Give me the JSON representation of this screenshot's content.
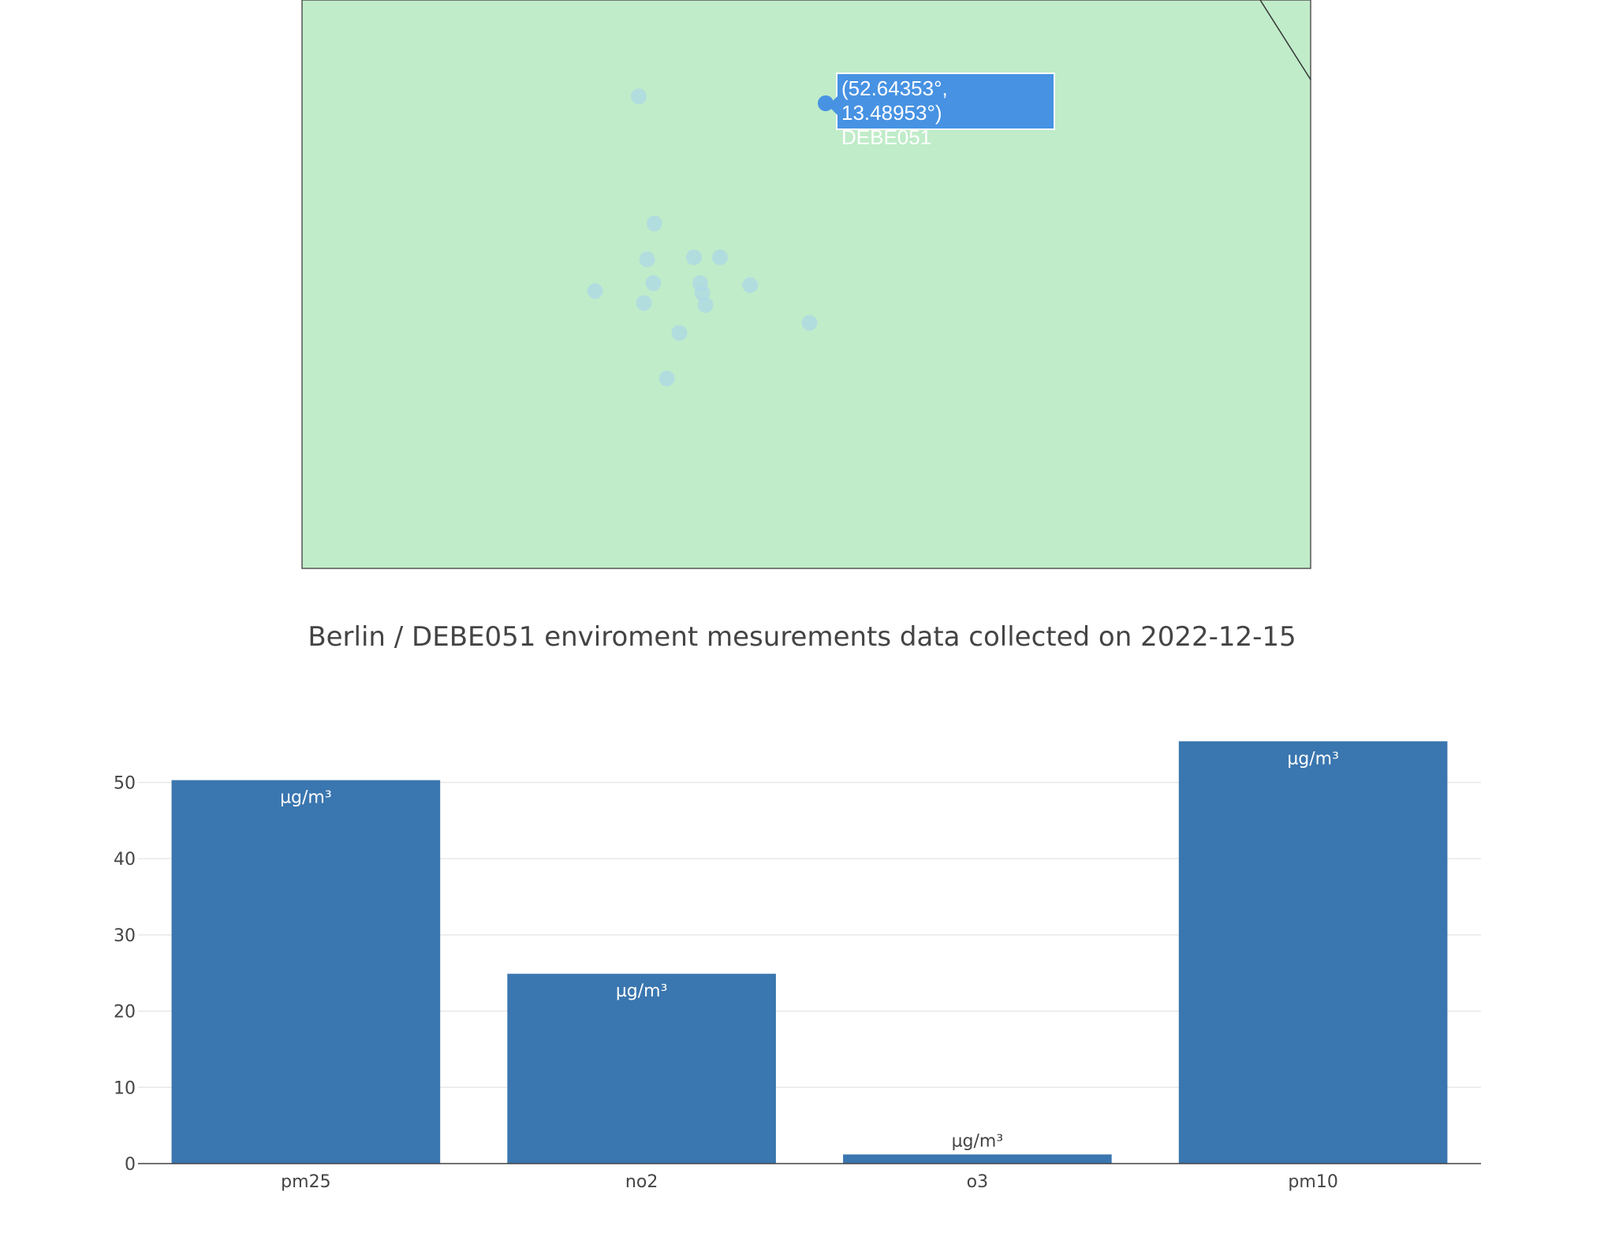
{
  "map": {
    "land_color": "#c0ecc9",
    "marker_color": "#add8e6",
    "selected_marker_color": "#4792e3",
    "stations": [
      {
        "lat": 52.647,
        "lon": 13.31
      },
      {
        "lat": 52.583,
        "lon": 13.325
      },
      {
        "lat": 52.565,
        "lon": 13.318
      },
      {
        "lat": 52.553,
        "lon": 13.324
      },
      {
        "lat": 52.549,
        "lon": 13.268
      },
      {
        "lat": 52.543,
        "lon": 13.315
      },
      {
        "lat": 52.566,
        "lon": 13.363
      },
      {
        "lat": 52.566,
        "lon": 13.388
      },
      {
        "lat": 52.553,
        "lon": 13.369
      },
      {
        "lat": 52.548,
        "lon": 13.371
      },
      {
        "lat": 52.542,
        "lon": 13.374
      },
      {
        "lat": 52.552,
        "lon": 13.417
      },
      {
        "lat": 52.528,
        "lon": 13.349
      },
      {
        "lat": 52.533,
        "lon": 13.474
      },
      {
        "lat": 52.505,
        "lon": 13.337
      }
    ],
    "selected": {
      "lat": 52.64353,
      "lon": 13.48953,
      "id": "DEBE051"
    },
    "tooltip_coords": "(52.64353°, 13.48953°)",
    "tooltip_id": "DEBE051"
  },
  "title": "Berlin / DEBE051 enviroment mesurements data collected on 2022-12-15",
  "chart_data": {
    "type": "bar",
    "categories": [
      "pm25",
      "no2",
      "o3",
      "pm10"
    ],
    "values": [
      50.3,
      24.9,
      1.2,
      55.4
    ],
    "text": [
      "µg/m³",
      "µg/m³",
      "µg/m³",
      "µg/m³"
    ],
    "ylim": [
      0,
      57.5
    ],
    "yticks": [
      0,
      10,
      20,
      30,
      40,
      50
    ],
    "grid": true,
    "bar_color": "#3a76af",
    "title": "Berlin / DEBE051 enviroment mesurements data collected on 2022-12-15"
  }
}
